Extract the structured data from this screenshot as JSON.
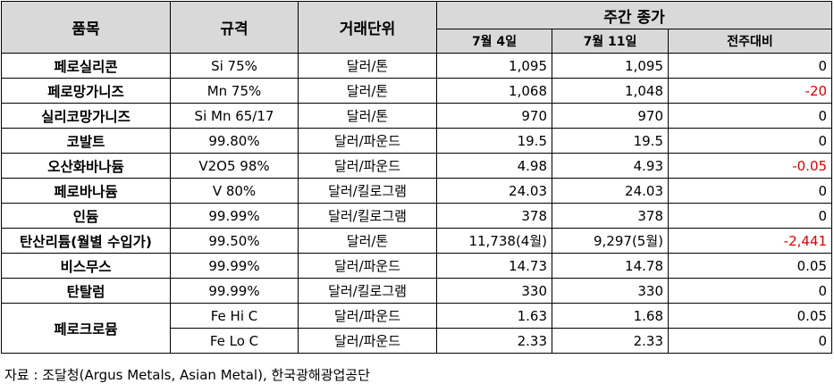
{
  "header": {
    "item": "품목",
    "spec": "규격",
    "unit": "거래단위",
    "weekly_close": "주간 종가",
    "jul4": "7월 4일",
    "jul11": "7월 11일",
    "change": "전주대비"
  },
  "rows": [
    {
      "item": "페로실리콘",
      "spec": "Si 75%",
      "unit": "달러/톤",
      "jul4": "1,095",
      "jul11": "1,095",
      "change": "0"
    },
    {
      "item": "페로망가니즈",
      "spec": "Mn 75%",
      "unit": "달러/톤",
      "jul4": "1,068",
      "jul11": "1,048",
      "change": "-20"
    },
    {
      "item": "실리코망가니즈",
      "spec": "Si Mn 65/17",
      "unit": "달러/톤",
      "jul4": "970",
      "jul11": "970",
      "change": "0"
    },
    {
      "item": "코발트",
      "spec": "99.80%",
      "unit": "달러/파운드",
      "jul4": "19.5",
      "jul11": "19.5",
      "change": "0"
    },
    {
      "item": "오산화바나듐",
      "spec": "V2O5 98%",
      "unit": "달러/파운드",
      "jul4": "4.98",
      "jul11": "4.93",
      "change": "-0.05"
    },
    {
      "item": "페로바나듐",
      "spec": "V 80%",
      "unit": "달러/킬로그램",
      "jul4": "24.03",
      "jul11": "24.03",
      "change": "0"
    },
    {
      "item": "인듐",
      "spec": "99.99%",
      "unit": "달러/킬로그램",
      "jul4": "378",
      "jul11": "378",
      "change": "0"
    },
    {
      "item": "탄산리튬(월별 수입가)",
      "spec": "99.50%",
      "unit": "달러/톤",
      "jul4": "11,738(4월)",
      "jul11": "9,297(5월)",
      "change": "-2,441"
    },
    {
      "item": "비스무스",
      "spec": "99.99%",
      "unit": "달러/파운드",
      "jul4": "14.73",
      "jul11": "14.78",
      "change": "0.05"
    },
    {
      "item": "탄탈럼",
      "spec": "99.99%",
      "unit": "달러/킬로그램",
      "jul4": "330",
      "jul11": "330",
      "change": "0"
    }
  ],
  "ferrochrome": {
    "item": "페로크로뮴",
    "rows": [
      {
        "spec": "Fe Hi C",
        "unit": "달러/파운드",
        "jul4": "1.63",
        "jul11": "1.68",
        "change": "0.05"
      },
      {
        "spec": "Fe Lo C",
        "unit": "달러/파운드",
        "jul4": "2.33",
        "jul11": "2.33",
        "change": "0"
      }
    ]
  },
  "source": "자료 : 조달청(Argus Metals, Asian Metal), 한국광해광업공단",
  "colors": {
    "header_bg": "#d9d9d9",
    "negative": "#e00000"
  }
}
